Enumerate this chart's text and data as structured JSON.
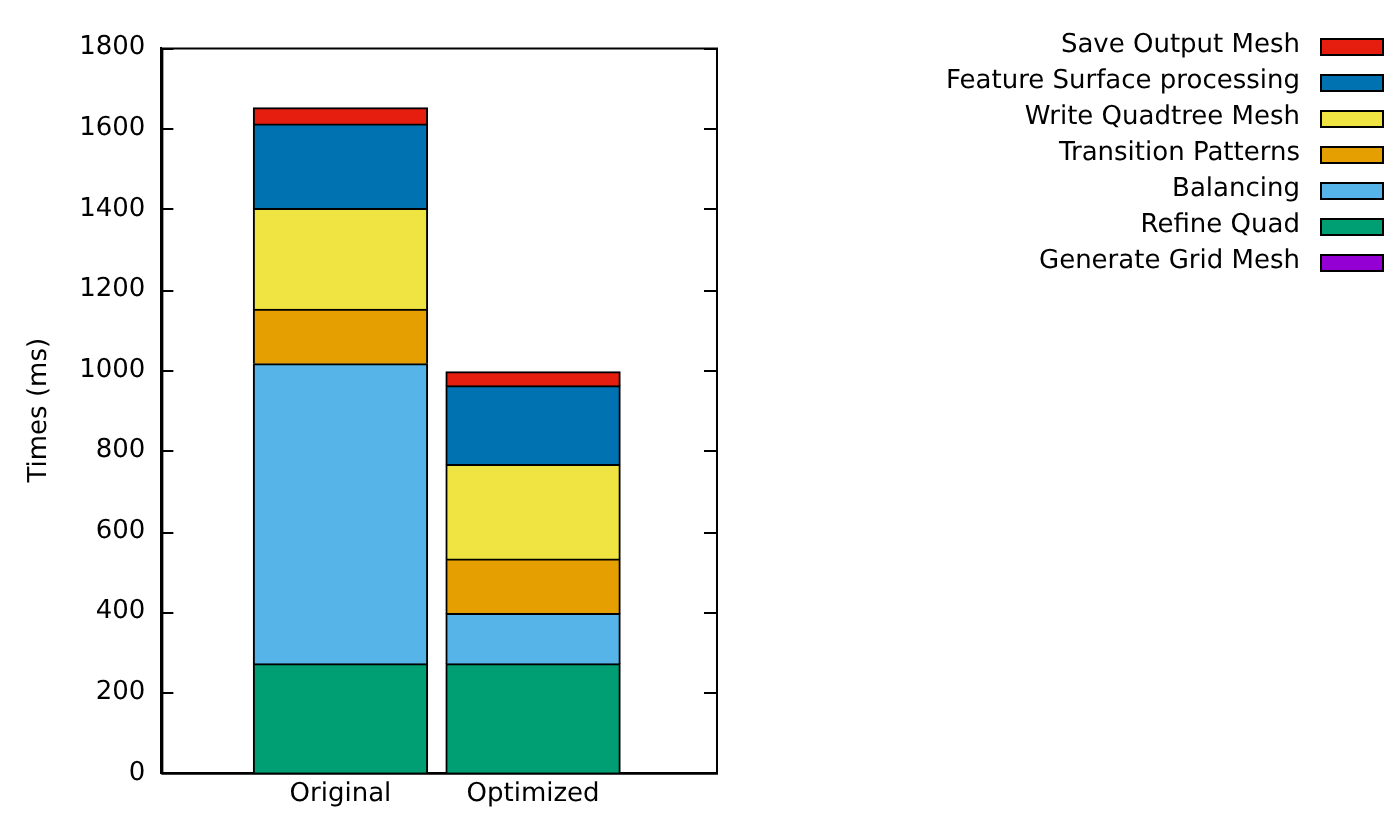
{
  "chart_data": {
    "type": "bar",
    "ylabel": "Times (ms)",
    "categories": [
      "Original",
      "Optimized"
    ],
    "stacked": true,
    "ylim": [
      0,
      1800
    ],
    "yticks": [
      0,
      200,
      400,
      600,
      800,
      1000,
      1200,
      1400,
      1600,
      1800
    ],
    "grid": false,
    "legend": "top right",
    "series": [
      {
        "name": "Generate Grid Mesh",
        "color": "#9400d3",
        "values": [
          0,
          0
        ]
      },
      {
        "name": "Refine Quad",
        "color": "#009e73",
        "values": [
          270,
          270
        ]
      },
      {
        "name": "Balancing",
        "color": "#56b4e9",
        "values": [
          745,
          125
        ]
      },
      {
        "name": "Transition Patterns",
        "color": "#e69f00",
        "values": [
          135,
          135
        ]
      },
      {
        "name": "Write Quadtree Mesh",
        "color": "#f0e442",
        "values": [
          250,
          235
        ]
      },
      {
        "name": "Feature Surface processing",
        "color": "#0072b2",
        "values": [
          210,
          195
        ]
      },
      {
        "name": "Save Output Mesh",
        "color": "#e51e10",
        "values": [
          40,
          35
        ]
      }
    ]
  }
}
